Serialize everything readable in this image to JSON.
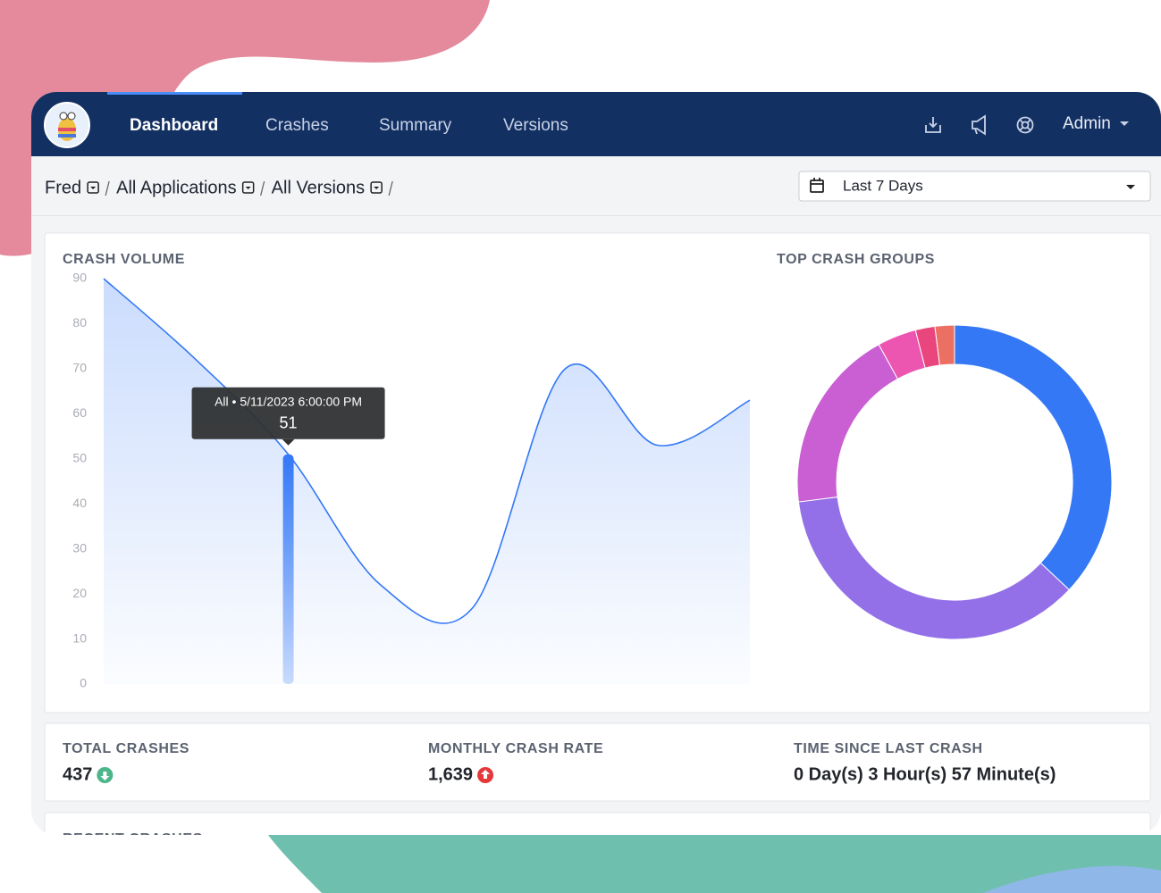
{
  "nav": {
    "items": [
      "Dashboard",
      "Crashes",
      "Summary",
      "Versions"
    ],
    "active": 0,
    "user": "Admin"
  },
  "breadcrumbs": [
    "Fred",
    "All Applications",
    "All Versions"
  ],
  "date_range": "Last 7 Days",
  "chart_data": [
    {
      "type": "line",
      "title": "CRASH VOLUME",
      "values": [
        90,
        72,
        51,
        22,
        17,
        70,
        53,
        63
      ],
      "color": "#3478f6",
      "ylim": [
        0,
        90
      ],
      "yticks": [
        0,
        10,
        20,
        30,
        40,
        50,
        60,
        70,
        80,
        90
      ],
      "tooltip": {
        "index": 2,
        "label": "All • 5/11/2023 6:00:00 PM"
      }
    },
    {
      "type": "donut",
      "title": "TOP CRASH GROUPS",
      "values": [
        37,
        36,
        19,
        4,
        2,
        2
      ],
      "colors": [
        "#3478f6",
        "#9370e8",
        "#c95fd2",
        "#ec55b0",
        "#e8467c",
        "#ec6f63"
      ]
    }
  ],
  "stats": [
    {
      "label": "TOTAL CRASHES",
      "value": "437",
      "trend": "down"
    },
    {
      "label": "MONTHLY CRASH RATE",
      "value": "1,639",
      "trend": "up"
    },
    {
      "label": "TIME SINCE LAST CRASH",
      "value": "0 Day(s) 3 Hour(s) 57 Minute(s)"
    }
  ],
  "next_section": "RECENT CRASHES"
}
